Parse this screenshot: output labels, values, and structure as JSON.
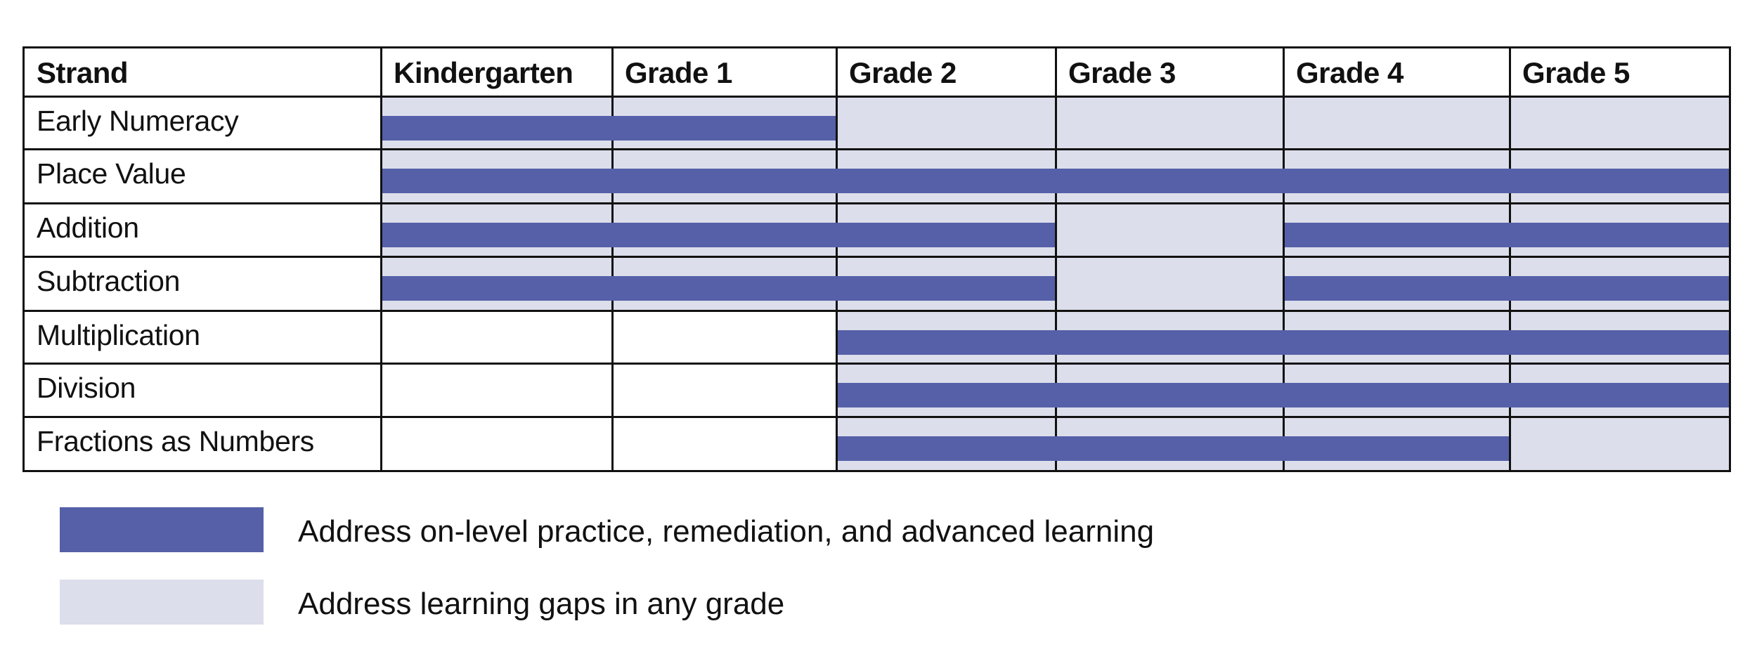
{
  "table": {
    "columns": [
      "Strand",
      "Kindergarten",
      "Grade 1",
      "Grade 2",
      "Grade 3",
      "Grade 4",
      "Grade 5"
    ],
    "rows": [
      {
        "strand": "Early Numeracy",
        "light": [
          0,
          1,
          2,
          3,
          4,
          5
        ],
        "dark": [
          [
            0,
            1
          ]
        ]
      },
      {
        "strand": "Place Value",
        "light": [
          0,
          1,
          2,
          3,
          4,
          5
        ],
        "dark": [
          [
            0,
            5
          ]
        ]
      },
      {
        "strand": "Addition",
        "light": [
          0,
          1,
          2,
          3,
          4,
          5
        ],
        "dark": [
          [
            0,
            2
          ],
          [
            4,
            5
          ]
        ]
      },
      {
        "strand": "Subtraction",
        "light": [
          0,
          1,
          2,
          3,
          4,
          5
        ],
        "dark": [
          [
            0,
            2
          ],
          [
            4,
            5
          ]
        ]
      },
      {
        "strand": "Multiplication",
        "light": [
          2,
          3,
          4,
          5
        ],
        "dark": [
          [
            2,
            5
          ]
        ]
      },
      {
        "strand": "Division",
        "light": [
          2,
          3,
          4,
          5
        ],
        "dark": [
          [
            2,
            5
          ]
        ]
      },
      {
        "strand": "Fractions as Numbers",
        "light": [
          2,
          3,
          4,
          5
        ],
        "dark": [
          [
            2,
            4
          ]
        ]
      }
    ]
  },
  "legend": {
    "items": [
      {
        "label": "Address on-level practice, remediation, and advanced learning",
        "color": "#5660a8"
      },
      {
        "label": "Address learning gaps in any grade",
        "color": "#dcdeec"
      }
    ]
  },
  "colors": {
    "dark": "#5660a8",
    "light": "#dcdeec",
    "grid": "#111111"
  }
}
